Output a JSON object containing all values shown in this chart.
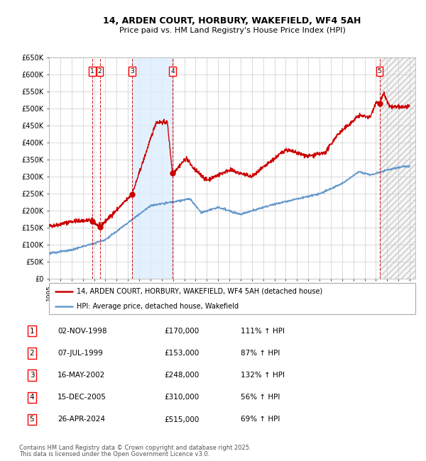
{
  "title1": "14, ARDEN COURT, HORBURY, WAKEFIELD, WF4 5AH",
  "title2": "Price paid vs. HM Land Registry's House Price Index (HPI)",
  "ylim": [
    0,
    650000
  ],
  "yticks": [
    0,
    50000,
    100000,
    150000,
    200000,
    250000,
    300000,
    350000,
    400000,
    450000,
    500000,
    550000,
    600000,
    650000
  ],
  "ytick_labels": [
    "£0",
    "£50K",
    "£100K",
    "£150K",
    "£200K",
    "£250K",
    "£300K",
    "£350K",
    "£400K",
    "£450K",
    "£500K",
    "£550K",
    "£600K",
    "£650K"
  ],
  "xlim_start": 1995.0,
  "xlim_end": 2027.5,
  "xtick_years": [
    1995,
    1996,
    1997,
    1998,
    1999,
    2000,
    2001,
    2002,
    2003,
    2004,
    2005,
    2006,
    2007,
    2008,
    2009,
    2010,
    2011,
    2012,
    2013,
    2014,
    2015,
    2016,
    2017,
    2018,
    2019,
    2020,
    2021,
    2022,
    2023,
    2024,
    2025,
    2026,
    2027
  ],
  "sale_dates": [
    1998.836,
    1999.51,
    2002.37,
    2005.954,
    2024.32
  ],
  "sale_prices": [
    170000,
    153000,
    248000,
    310000,
    515000
  ],
  "sale_labels": [
    "1",
    "2",
    "3",
    "4",
    "5"
  ],
  "shade_start": 2002.37,
  "shade_end": 2005.954,
  "hatch_start": 2024.32,
  "hatch_end": 2027.5,
  "red_line_color": "#cc0000",
  "blue_line_color": "#6699cc",
  "legend_label_red": "14, ARDEN COURT, HORBURY, WAKEFIELD, WF4 5AH (detached house)",
  "legend_label_blue": "HPI: Average price, detached house, Wakefield",
  "table_entries": [
    {
      "num": "1",
      "date": "02-NOV-1998",
      "price": "£170,000",
      "hpi": "111% ↑ HPI"
    },
    {
      "num": "2",
      "date": "07-JUL-1999",
      "price": "£153,000",
      "hpi": "87% ↑ HPI"
    },
    {
      "num": "3",
      "date": "16-MAY-2002",
      "price": "£248,000",
      "hpi": "132% ↑ HPI"
    },
    {
      "num": "4",
      "date": "15-DEC-2005",
      "price": "£310,000",
      "hpi": "56% ↑ HPI"
    },
    {
      "num": "5",
      "date": "26-APR-2024",
      "price": "£515,000",
      "hpi": "69% ↑ HPI"
    }
  ],
  "footnote1": "Contains HM Land Registry data © Crown copyright and database right 2025.",
  "footnote2": "This data is licensed under the Open Government Licence v3.0.",
  "background_color": "#ffffff",
  "grid_color": "#cccccc",
  "plot_bg": "#ffffff"
}
